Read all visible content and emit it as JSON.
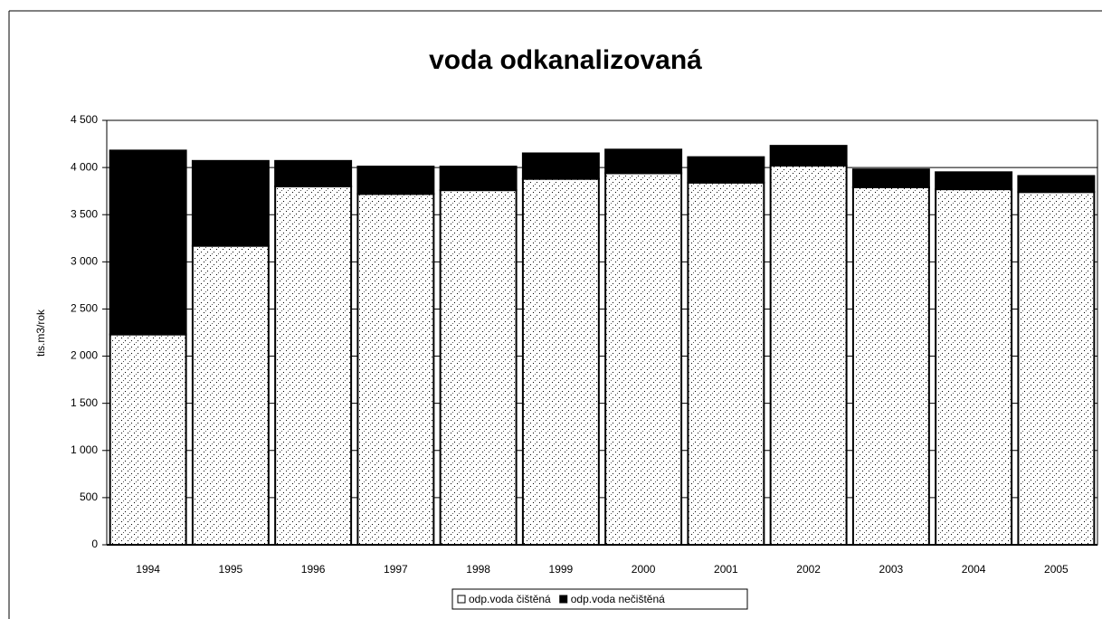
{
  "chart_data": {
    "type": "stacked_bar",
    "title": "voda odkanalizovaná",
    "y_label": "tis.m3/rok",
    "categories": [
      "1994",
      "1995",
      "1996",
      "1997",
      "1998",
      "1999",
      "2000",
      "2001",
      "2002",
      "2003",
      "2004",
      "2005"
    ],
    "series": [
      {
        "name": "odp.voda čištěná",
        "color": "#ffffff",
        "values": [
          2230,
          3170,
          3800,
          3720,
          3760,
          3880,
          3940,
          3840,
          4020,
          3790,
          3770,
          3740
        ]
      },
      {
        "name": "odp.voda nečištěná",
        "color": "#000000",
        "values": [
          1950,
          900,
          270,
          290,
          250,
          270,
          250,
          270,
          210,
          190,
          180,
          170
        ]
      }
    ],
    "ylim": [
      0,
      4500
    ],
    "yticks": [
      0,
      500,
      {
        "value": 1000,
        "label": "1 000"
      },
      {
        "value": 1500,
        "label": "1 500"
      },
      {
        "value": 2000,
        "label": "2 000"
      },
      {
        "value": 2500,
        "label": "2 500"
      },
      {
        "value": 3000,
        "label": "3 000"
      },
      {
        "value": 3500,
        "label": "3 500"
      },
      {
        "value": 4000,
        "label": "4 000"
      },
      {
        "value": 4500,
        "label": "4 500"
      }
    ],
    "grid": true,
    "legend": "bottom"
  }
}
